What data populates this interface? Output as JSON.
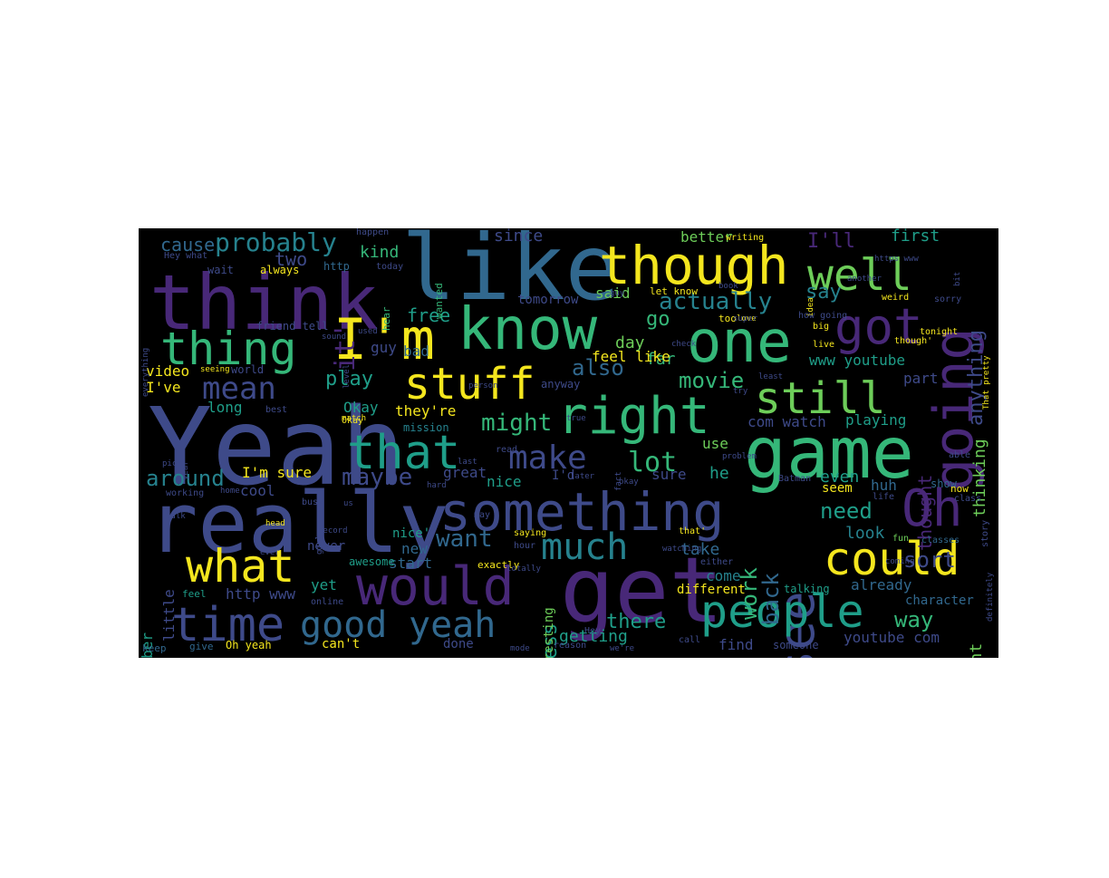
{
  "cloud": {
    "background": "#000000",
    "palette": {
      "y": "#f4e61e",
      "lg": "#6dcd59",
      "g": "#35b779",
      "t": "#1f9e89",
      "tb": "#26828e",
      "b": "#31688e",
      "bb": "#3e4a89",
      "i": "#482878",
      "p": "#440154"
    },
    "words": [
      {
        "text": "Yeah",
        "c": "bb"
      },
      {
        "text": "like",
        "c": "b"
      },
      {
        "text": "think",
        "c": "i"
      },
      {
        "text": "really",
        "c": "bb"
      },
      {
        "text": "get",
        "c": "i"
      },
      {
        "text": "game",
        "c": "g"
      },
      {
        "text": "I'm",
        "c": "y"
      },
      {
        "text": "know",
        "c": "g"
      },
      {
        "text": "one",
        "c": "g"
      },
      {
        "text": "though",
        "c": "y"
      },
      {
        "text": "something",
        "c": "bb"
      },
      {
        "text": "would",
        "c": "i"
      },
      {
        "text": "right",
        "c": "g"
      },
      {
        "text": "that",
        "c": "t"
      },
      {
        "text": "Oh",
        "c": "i"
      },
      {
        "text": "going",
        "c": "i"
      },
      {
        "text": "see",
        "c": "bb"
      },
      {
        "text": "people",
        "c": "t"
      },
      {
        "text": "time",
        "c": "bb"
      },
      {
        "text": "could",
        "c": "y"
      },
      {
        "text": "what",
        "c": "y"
      },
      {
        "text": "thing",
        "c": "g"
      },
      {
        "text": "stuff",
        "c": "y"
      },
      {
        "text": "still",
        "c": "lg"
      },
      {
        "text": "well",
        "c": "lg"
      },
      {
        "text": "got",
        "c": "i"
      },
      {
        "text": "good",
        "c": "b"
      },
      {
        "text": "yeah",
        "c": "b"
      },
      {
        "text": "much",
        "c": "tb"
      },
      {
        "text": "make",
        "c": "bb"
      },
      {
        "text": "mean",
        "c": "bb"
      },
      {
        "text": "probably",
        "c": "tb"
      },
      {
        "text": "it'",
        "c": "i"
      },
      {
        "text": "lot",
        "c": "g"
      },
      {
        "text": "might",
        "c": "g"
      },
      {
        "text": "want",
        "c": "b"
      },
      {
        "text": "maybe",
        "c": "bb"
      },
      {
        "text": "around",
        "c": "tb"
      },
      {
        "text": "actually",
        "c": "tb"
      },
      {
        "text": "say",
        "c": "tb"
      },
      {
        "text": "I'll",
        "c": "i"
      },
      {
        "text": "play",
        "c": "t"
      },
      {
        "text": "movie",
        "c": "g"
      },
      {
        "text": "also",
        "c": "b"
      },
      {
        "text": "need",
        "c": "t"
      },
      {
        "text": "work",
        "c": "g"
      },
      {
        "text": "back",
        "c": "b"
      },
      {
        "text": "sort",
        "c": "bb"
      },
      {
        "text": "way",
        "c": "g"
      },
      {
        "text": "there",
        "c": "t"
      },
      {
        "text": "guess",
        "c": "t"
      },
      {
        "text": "anything",
        "c": "bb"
      },
      {
        "text": "thinking",
        "c": "lg"
      },
      {
        "text": "thought",
        "c": "i"
      },
      {
        "text": "first",
        "c": "t"
      },
      {
        "text": "kind",
        "c": "g"
      },
      {
        "text": "cause",
        "c": "b"
      },
      {
        "text": "two",
        "c": "bb"
      },
      {
        "text": "since",
        "c": "bb"
      },
      {
        "text": "better",
        "c": "lg"
      },
      {
        "text": "said",
        "c": "lg"
      },
      {
        "text": "free",
        "c": "t"
      },
      {
        "text": "go",
        "c": "g"
      },
      {
        "text": "day",
        "c": "lg"
      },
      {
        "text": "far",
        "c": "g"
      },
      {
        "text": "feel like",
        "c": "y"
      },
      {
        "text": "www youtube",
        "c": "t"
      },
      {
        "text": "part",
        "c": "bb"
      },
      {
        "text": "com watch",
        "c": "bb"
      },
      {
        "text": "playing",
        "c": "t"
      },
      {
        "text": "youtube com",
        "c": "bb"
      },
      {
        "text": "point",
        "c": "lg"
      },
      {
        "text": "video",
        "c": "y"
      },
      {
        "text": "I've",
        "c": "y"
      },
      {
        "text": "long",
        "c": "t"
      },
      {
        "text": "I'm sure",
        "c": "y"
      },
      {
        "text": "cool",
        "c": "bb"
      },
      {
        "text": "they're",
        "c": "y"
      },
      {
        "text": "Okay",
        "c": "t"
      },
      {
        "text": "bad",
        "c": "b"
      },
      {
        "text": "nice",
        "c": "t"
      },
      {
        "text": "great",
        "c": "bb"
      },
      {
        "text": "sure",
        "c": "bb"
      },
      {
        "text": "he",
        "c": "t"
      },
      {
        "text": "use",
        "c": "lg"
      },
      {
        "text": "even",
        "c": "t"
      },
      {
        "text": "huh",
        "c": "b"
      },
      {
        "text": "look",
        "c": "tb"
      },
      {
        "text": "already",
        "c": "b"
      },
      {
        "text": "take",
        "c": "b"
      },
      {
        "text": "come",
        "c": "tb"
      },
      {
        "text": "different",
        "c": "y"
      },
      {
        "text": "getting",
        "c": "t"
      },
      {
        "text": "find",
        "c": "bb"
      },
      {
        "text": "character",
        "c": "b"
      },
      {
        "text": "little",
        "c": "bb"
      },
      {
        "text": "remember",
        "c": "t"
      },
      {
        "text": "http www",
        "c": "bb"
      },
      {
        "text": "yet",
        "c": "t"
      },
      {
        "text": "never",
        "c": "bb"
      },
      {
        "text": "can't",
        "c": "y"
      },
      {
        "text": "new",
        "c": "b"
      },
      {
        "text": "start",
        "c": "b"
      },
      {
        "text": "done",
        "c": "bb"
      },
      {
        "text": "interesting",
        "c": "lg"
      },
      {
        "text": "nice'",
        "c": "t"
      },
      {
        "text": "guy",
        "c": "bb"
      },
      {
        "text": "anyway",
        "c": "bb"
      },
      {
        "text": "Oh yeah",
        "c": "y"
      },
      {
        "text": "seem",
        "c": "y"
      },
      {
        "text": "awesome",
        "c": "t"
      },
      {
        "text": "tomorrow",
        "c": "bb"
      },
      {
        "text": "show",
        "c": "b"
      },
      {
        "text": "someone",
        "c": "bb"
      },
      {
        "text": "talking",
        "c": "t"
      },
      {
        "text": "exactly",
        "c": "y"
      },
      {
        "text": "I'd",
        "c": "bb"
      },
      {
        "text": "http",
        "c": "b"
      },
      {
        "text": "always",
        "c": "y"
      },
      {
        "text": "mission",
        "c": "tb"
      },
      {
        "text": "world",
        "c": "bb"
      },
      {
        "text": "Okay",
        "c": "y"
      },
      {
        "text": "let know",
        "c": "y"
      },
      {
        "text": "now",
        "c": "y"
      },
      {
        "text": "too",
        "c": "y"
      },
      {
        "text": "wait",
        "c": "bb"
      },
      {
        "text": "hear",
        "c": "g"
      },
      {
        "text": "wanted",
        "c": "g"
      },
      {
        "text": "friend tell",
        "c": "bb"
      },
      {
        "text": "keep",
        "c": "b"
      },
      {
        "text": "give",
        "c": "b"
      },
      {
        "text": "feel",
        "c": "t"
      },
      {
        "text": "fun",
        "c": "lg"
      },
      {
        "text": "classes",
        "c": "b"
      },
      {
        "text": "saying",
        "c": "y"
      },
      {
        "text": "hour",
        "c": "bb"
      },
      {
        "text": "reason",
        "c": "bb"
      },
      {
        "text": "Hey",
        "c": "bb"
      },
      {
        "text": "call",
        "c": "bb"
      },
      {
        "text": "either",
        "c": "bb"
      },
      {
        "text": "able",
        "c": "bb"
      },
      {
        "text": "busy",
        "c": "bb"
      },
      {
        "text": "working",
        "c": "bb"
      },
      {
        "text": "may",
        "c": "bb"
      },
      {
        "text": "life",
        "c": "bb"
      },
      {
        "text": "read",
        "c": "bb"
      },
      {
        "text": "happen",
        "c": "bb"
      },
      {
        "text": "writing",
        "c": "y"
      },
      {
        "text": "today",
        "c": "bb"
      },
      {
        "text": "weird",
        "c": "y"
      },
      {
        "text": "big",
        "c": "y"
      },
      {
        "text": "live",
        "c": "y"
      },
      {
        "text": "tonight",
        "c": "y"
      },
      {
        "text": "sorry",
        "c": "bb"
      },
      {
        "text": "Batman",
        "c": "bb"
      },
      {
        "text": "story",
        "c": "bb"
      },
      {
        "text": "class",
        "c": "bb"
      },
      {
        "text": "best",
        "c": "bb"
      },
      {
        "text": "match",
        "c": "y"
      },
      {
        "text": "Hey what",
        "c": "bb"
      },
      {
        "text": "seeing",
        "c": "y"
      },
      {
        "text": "online",
        "c": "bb"
      },
      {
        "text": "talk",
        "c": "bb"
      },
      {
        "text": "pick",
        "c": "bb"
      },
      {
        "text": "level",
        "c": "bb"
      },
      {
        "text": "bit",
        "c": "bb"
      },
      {
        "text": "problem",
        "c": "bb"
      },
      {
        "text": "check",
        "c": "bb"
      },
      {
        "text": "love",
        "c": "y"
      },
      {
        "text": "try",
        "c": "bb"
      },
      {
        "text": "least",
        "c": "bb"
      },
      {
        "text": "later",
        "c": "bb"
      },
      {
        "text": "okay",
        "c": "bb"
      },
      {
        "text": "ever",
        "c": "bb"
      },
      {
        "text": "true",
        "c": "bb"
      },
      {
        "text": "last",
        "c": "bb"
      },
      {
        "text": "us",
        "c": "bb"
      },
      {
        "text": "mode",
        "c": "bb"
      },
      {
        "text": "fact",
        "c": "bb"
      },
      {
        "text": "watching",
        "c": "bb"
      },
      {
        "text": "book",
        "c": "bb"
      },
      {
        "text": "idea",
        "c": "y"
      },
      {
        "text": "another",
        "c": "bb"
      },
      {
        "text": "https www",
        "c": "bb"
      },
      {
        "text": "definitely",
        "c": "bb"
      },
      {
        "text": "guy",
        "c": "bb"
      },
      {
        "text": "That pretty",
        "c": "y"
      },
      {
        "text": "everything",
        "c": "bb"
      },
      {
        "text": "sound",
        "c": "bb"
      },
      {
        "text": "used",
        "c": "bb"
      },
      {
        "text": "head",
        "c": "y"
      },
      {
        "text": "year",
        "c": "bb"
      },
      {
        "text": "home",
        "c": "bb"
      },
      {
        "text": "person",
        "c": "bb"
      },
      {
        "text": "hard",
        "c": "bb"
      },
      {
        "text": "super",
        "c": "bb"
      },
      {
        "text": "how going",
        "c": "bb"
      },
      {
        "text": "record",
        "c": "bb"
      },
      {
        "text": "totally",
        "c": "bb"
      },
      {
        "text": "coming",
        "c": "bb"
      },
      {
        "text": "we're",
        "c": "bb"
      },
      {
        "text": "girl",
        "c": "bb"
      },
      {
        "text": "though'",
        "c": "y"
      },
      {
        "text": "that'",
        "c": "y"
      }
    ]
  }
}
